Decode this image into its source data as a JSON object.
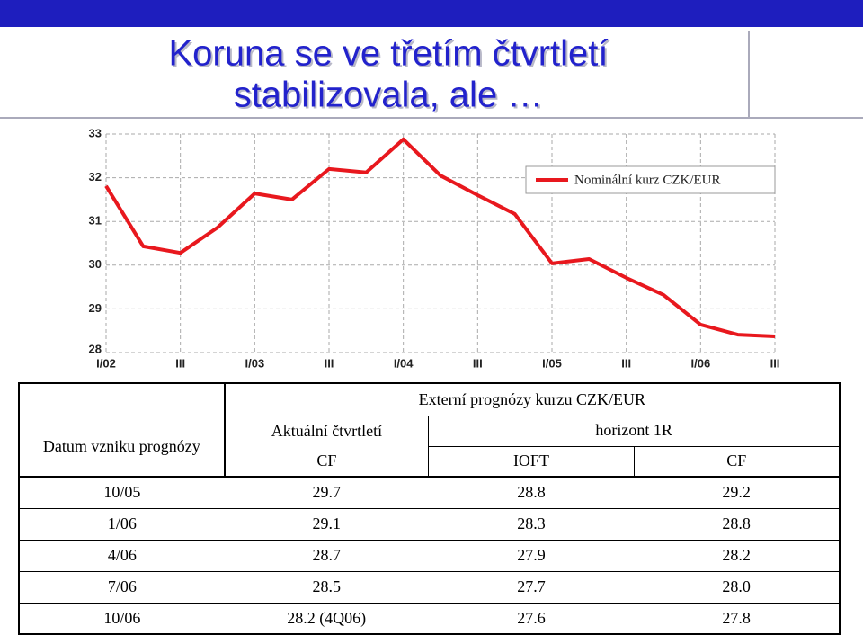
{
  "title": [
    "Koruna se ve třetím čtvrtletí",
    "stabilizovala, ale …"
  ],
  "chart_data": {
    "type": "line",
    "categories": [
      "I/02",
      null,
      "III",
      null,
      "I/03",
      null,
      "III",
      null,
      "I/04",
      null,
      "III",
      null,
      "I/05",
      null,
      "III",
      null,
      "I/06",
      null,
      "III"
    ],
    "series": [
      {
        "name": "Nominální kurz CZK/EUR",
        "color": "#e8181e",
        "values": [
          31.81,
          30.43,
          30.28,
          30.86,
          31.64,
          31.5,
          32.2,
          32.12,
          32.88,
          32.05,
          31.6,
          31.17,
          30.04,
          30.14,
          29.71,
          29.32,
          28.64,
          28.41,
          28.37
        ]
      }
    ],
    "ylim": [
      28,
      33
    ],
    "yticks": [
      28,
      29,
      30,
      31,
      32,
      33
    ],
    "grid": true
  },
  "table": {
    "header_col": "Datum vzniku prognózy",
    "group_title": "Externí prognózy kurzu CZK/EUR",
    "subgroups": [
      "Aktuální čtvrtletí",
      "horizont 1R"
    ],
    "columns": [
      "CF",
      "IOFT",
      "CF"
    ],
    "rows": [
      [
        "10/05",
        "29.7",
        "28.8",
        "29.2"
      ],
      [
        "1/06",
        "29.1",
        "28.3",
        "28.8"
      ],
      [
        "4/06",
        "28.7",
        "27.9",
        "28.2"
      ],
      [
        "7/06",
        "28.5",
        "27.7",
        "28.0"
      ],
      [
        "10/06",
        "28.2 (4Q06)",
        "27.6",
        "27.8"
      ]
    ]
  }
}
